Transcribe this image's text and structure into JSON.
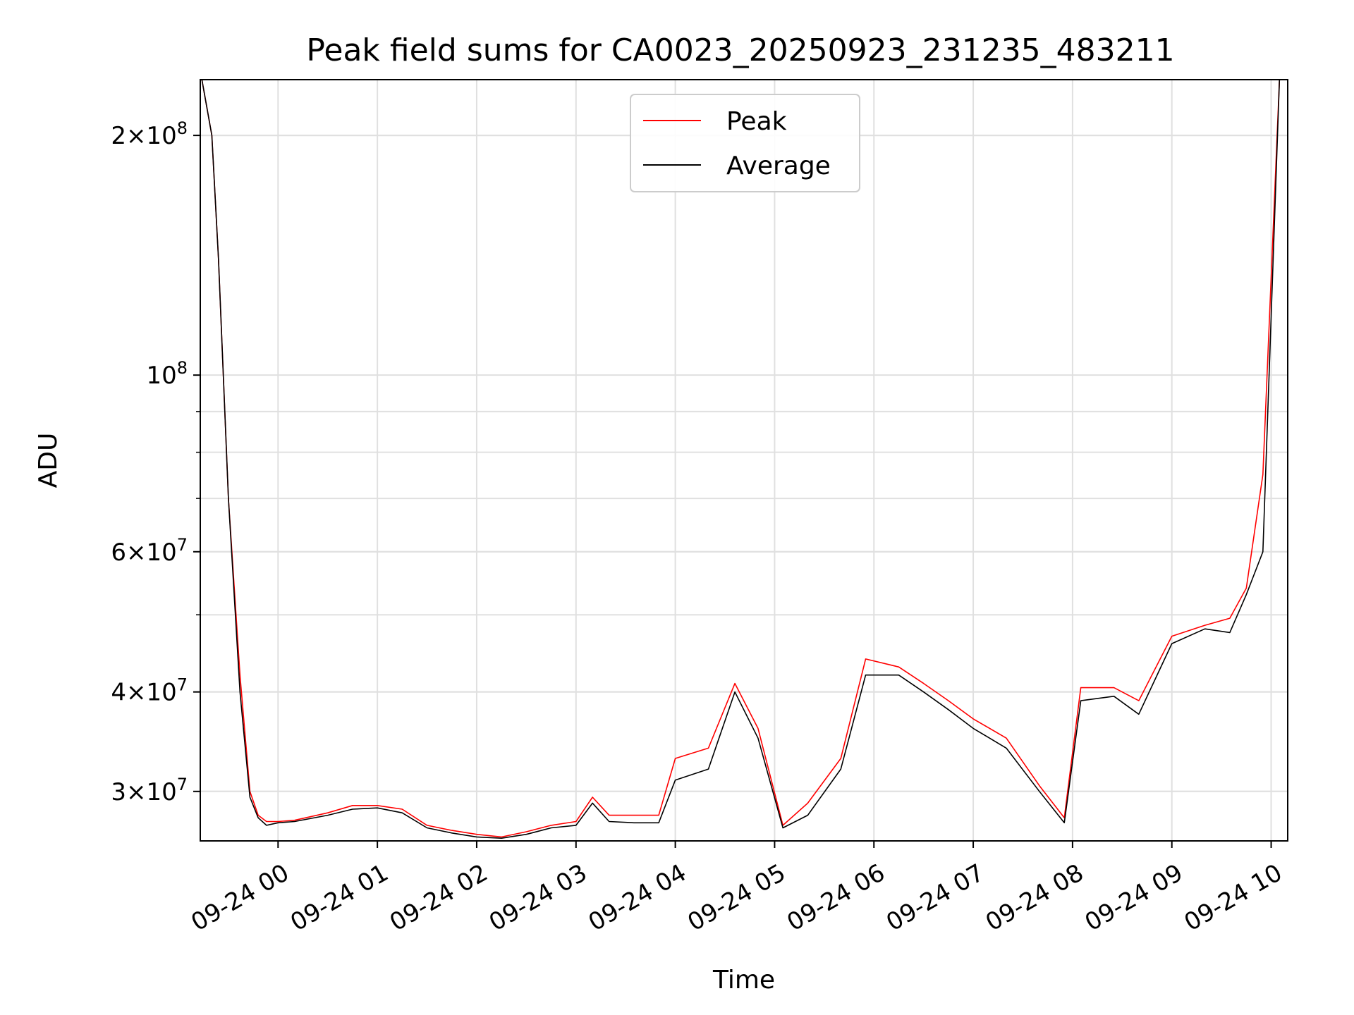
{
  "chart_data": {
    "type": "line",
    "title": "Peak field sums for CA0023_20250923_231235_483211",
    "xlabel": "Time",
    "ylabel": "ADU",
    "yscale": "log",
    "ylim": [
      26000000,
      235000000
    ],
    "xlim": [
      "2025-09-23 23:13",
      "2025-09-24 10:10"
    ],
    "grid": true,
    "legend_position": "upper-center",
    "x_ticks": [
      "2025-09-24 00:00",
      "2025-09-24 01:00",
      "2025-09-24 02:00",
      "2025-09-24 03:00",
      "2025-09-24 04:00",
      "2025-09-24 05:00",
      "2025-09-24 06:00",
      "2025-09-24 07:00",
      "2025-09-24 08:00",
      "2025-09-24 09:00",
      "2025-09-24 10:00"
    ],
    "x_tick_labels": [
      "09-24 00",
      "09-24 01",
      "09-24 02",
      "09-24 03",
      "09-24 04",
      "09-24 05",
      "09-24 06",
      "09-24 07",
      "09-24 08",
      "09-24 09",
      "09-24 10"
    ],
    "y_ticks": [
      30000000,
      40000000,
      60000000,
      100000000,
      200000000
    ],
    "y_tick_mantissa": [
      "3",
      "4",
      "6",
      "",
      "2"
    ],
    "y_tick_exponent": [
      "7",
      "7",
      "7",
      "8",
      "8"
    ],
    "y_tick_base": [
      "×10",
      "×10",
      "×10",
      "10",
      "×10"
    ],
    "series": [
      {
        "name": "Peak",
        "color": "#ff0000",
        "x": [
          "2025-09-23 23:14",
          "2025-09-23 23:20",
          "2025-09-23 23:24",
          "2025-09-23 23:30",
          "2025-09-23 23:37",
          "2025-09-23 23:43",
          "2025-09-23 23:48",
          "2025-09-23 23:53",
          "2025-09-24 00:00",
          "2025-09-24 00:10",
          "2025-09-24 00:30",
          "2025-09-24 00:45",
          "2025-09-24 01:00",
          "2025-09-24 01:15",
          "2025-09-24 01:30",
          "2025-09-24 01:45",
          "2025-09-24 02:00",
          "2025-09-24 02:15",
          "2025-09-24 02:30",
          "2025-09-24 02:45",
          "2025-09-24 03:00",
          "2025-09-24 03:10",
          "2025-09-24 03:20",
          "2025-09-24 03:35",
          "2025-09-24 03:50",
          "2025-09-24 04:00",
          "2025-09-24 04:20",
          "2025-09-24 04:36",
          "2025-09-24 04:50",
          "2025-09-24 05:05",
          "2025-09-24 05:20",
          "2025-09-24 05:40",
          "2025-09-24 05:55",
          "2025-09-24 06:15",
          "2025-09-24 06:30",
          "2025-09-24 06:45",
          "2025-09-24 07:00",
          "2025-09-24 07:20",
          "2025-09-24 07:40",
          "2025-09-24 07:55",
          "2025-09-24 08:05",
          "2025-09-24 08:25",
          "2025-09-24 08:40",
          "2025-09-24 09:00",
          "2025-09-24 09:20",
          "2025-09-24 09:35",
          "2025-09-24 09:45",
          "2025-09-24 09:55",
          "2025-09-24 10:05"
        ],
        "values": [
          235000000,
          200000000,
          140000000,
          70000000,
          42000000,
          30000000,
          28000000,
          27500000,
          27500000,
          27600000,
          28200000,
          28800000,
          28800000,
          28500000,
          27200000,
          26800000,
          26500000,
          26300000,
          26700000,
          27200000,
          27500000,
          29500000,
          28000000,
          28000000,
          28000000,
          33000000,
          34000000,
          41000000,
          36000000,
          27200000,
          29000000,
          33000000,
          44000000,
          43000000,
          41000000,
          39000000,
          37000000,
          35000000,
          30500000,
          27800000,
          40500000,
          40500000,
          39000000,
          47000000,
          48500000,
          49500000,
          54000000,
          75000000,
          235000000
        ]
      },
      {
        "name": "Average",
        "color": "#000000",
        "x": [
          "2025-09-23 23:14",
          "2025-09-23 23:20",
          "2025-09-23 23:24",
          "2025-09-23 23:30",
          "2025-09-23 23:37",
          "2025-09-23 23:43",
          "2025-09-23 23:48",
          "2025-09-23 23:53",
          "2025-09-24 00:00",
          "2025-09-24 00:10",
          "2025-09-24 00:30",
          "2025-09-24 00:45",
          "2025-09-24 01:00",
          "2025-09-24 01:15",
          "2025-09-24 01:30",
          "2025-09-24 01:45",
          "2025-09-24 02:00",
          "2025-09-24 02:15",
          "2025-09-24 02:30",
          "2025-09-24 02:45",
          "2025-09-24 03:00",
          "2025-09-24 03:10",
          "2025-09-24 03:20",
          "2025-09-24 03:35",
          "2025-09-24 03:50",
          "2025-09-24 04:00",
          "2025-09-24 04:20",
          "2025-09-24 04:36",
          "2025-09-24 04:50",
          "2025-09-24 05:05",
          "2025-09-24 05:20",
          "2025-09-24 05:40",
          "2025-09-24 05:55",
          "2025-09-24 06:15",
          "2025-09-24 06:30",
          "2025-09-24 06:45",
          "2025-09-24 07:00",
          "2025-09-24 07:20",
          "2025-09-24 07:40",
          "2025-09-24 07:55",
          "2025-09-24 08:05",
          "2025-09-24 08:25",
          "2025-09-24 08:40",
          "2025-09-24 09:00",
          "2025-09-24 09:20",
          "2025-09-24 09:35",
          "2025-09-24 09:45",
          "2025-09-24 09:55",
          "2025-09-24 10:05"
        ],
        "values": [
          235000000,
          200000000,
          140000000,
          70000000,
          40000000,
          29500000,
          27800000,
          27200000,
          27400000,
          27500000,
          28000000,
          28500000,
          28600000,
          28200000,
          27000000,
          26600000,
          26300000,
          26200000,
          26500000,
          27000000,
          27200000,
          29000000,
          27500000,
          27400000,
          27400000,
          31000000,
          32000000,
          40000000,
          35000000,
          27000000,
          28000000,
          32000000,
          42000000,
          42000000,
          40000000,
          38000000,
          36000000,
          34000000,
          30000000,
          27400000,
          39000000,
          39500000,
          37500000,
          46000000,
          48000000,
          47500000,
          53000000,
          60000000,
          235000000
        ]
      }
    ]
  }
}
